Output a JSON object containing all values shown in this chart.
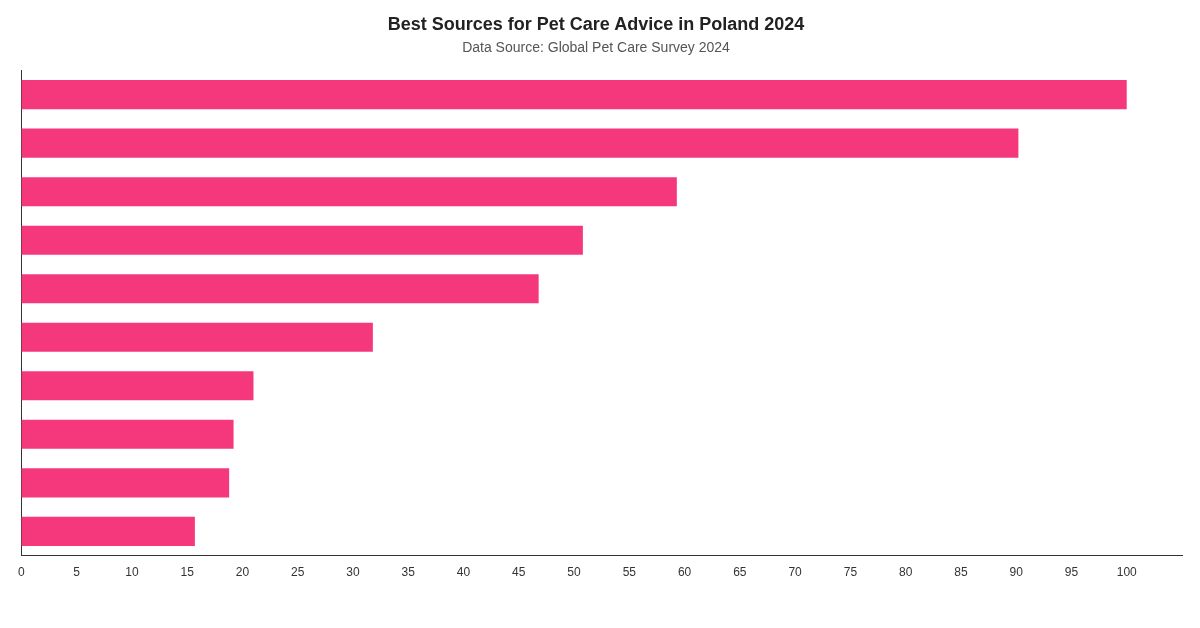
{
  "chart_data": {
    "type": "bar",
    "orientation": "horizontal",
    "title": "Best Sources for Pet Care Advice in Poland 2024",
    "subtitle": "Data Source: Global Pet Care Survey 2024",
    "categories": [
      null,
      null,
      null,
      null,
      null,
      null,
      null,
      null,
      null,
      null
    ],
    "values": [
      100,
      90.2,
      59.3,
      50.8,
      46.8,
      31.8,
      21,
      19.2,
      18.8,
      15.7
    ],
    "color": "#f5387b",
    "xlim": [
      0,
      105
    ],
    "xticks": [
      0,
      5,
      10,
      15,
      20,
      25,
      30,
      35,
      40,
      45,
      50,
      55,
      60,
      65,
      70,
      75,
      80,
      85,
      90,
      95,
      100
    ],
    "grid": false
  }
}
